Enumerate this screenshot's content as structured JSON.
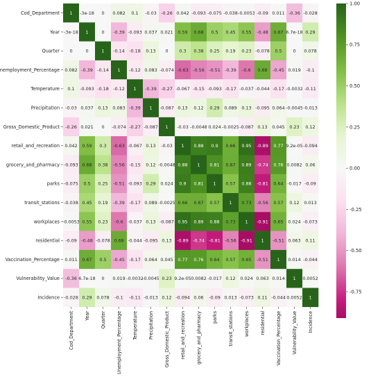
{
  "chart_data": {
    "type": "heatmap",
    "variables": [
      "Cod_Department",
      "Year",
      "Quarter",
      "Unemployment_Percentage",
      "Temperature",
      "Precipitation",
      "Gross_Domestic_Product",
      "retail_and_recreation",
      "grocery_and_pharmacy",
      "parks",
      "transit_stations",
      "workplaces",
      "residential",
      "Vaccination_Percentage",
      "Vulnerability_Value",
      "Incidence"
    ],
    "labels": [
      [
        "1",
        "-3e-18",
        "0",
        "0.082",
        "0.1",
        "-0.03",
        "-0.26",
        "0.042",
        "-0.093",
        "-0.075",
        "-0.038",
        "-0.0053",
        "-0.09",
        "0.011",
        "-0.36",
        "-0.028"
      ],
      [
        "-3e-18",
        "1",
        "0",
        "-0.39",
        "-0.093",
        "0.037",
        "0.021",
        "0.59",
        "0.68",
        "0.5",
        "0.45",
        "0.55",
        "-0.48",
        "0.67",
        "6.7e-18",
        "0.29"
      ],
      [
        "0",
        "0",
        "1",
        "-0.14",
        "-0.18",
        "0.13",
        "0",
        "0.3",
        "0.38",
        "0.25",
        "0.19",
        "0.23",
        "-0.078",
        "0.5",
        "0",
        "0.078"
      ],
      [
        "0.082",
        "-0.39",
        "-0.14",
        "1",
        "-0.12",
        "0.083",
        "-0.074",
        "-0.63",
        "-0.56",
        "-0.51",
        "-0.39",
        "-0.6",
        "0.68",
        "-0.45",
        "0.019",
        "-0.1"
      ],
      [
        "0.1",
        "-0.093",
        "-0.18",
        "-0.12",
        "1",
        "-0.39",
        "-0.27",
        "-0.067",
        "-0.15",
        "-0.093",
        "-0.17",
        "-0.037",
        "-0.044",
        "-0.17",
        "-0.0032",
        "-0.11"
      ],
      [
        "-0.03",
        "0.037",
        "0.13",
        "0.083",
        "-0.39",
        "1",
        "-0.087",
        "0.13",
        "0.12",
        "0.29",
        "0.089",
        "0.13",
        "-0.095",
        "0.064",
        "-0.0045",
        "-0.013"
      ],
      [
        "-0.26",
        "0.021",
        "0",
        "-0.074",
        "-0.27",
        "-0.087",
        "1",
        "-0.03",
        "-0.0048",
        "0.024",
        "-0.0025",
        "-0.087",
        "0.13",
        "0.045",
        "0.23",
        "0.12"
      ],
      [
        "0.042",
        "0.59",
        "0.3",
        "-0.63",
        "-0.067",
        "0.13",
        "-0.03",
        "1",
        "0.88",
        "0.9",
        "0.66",
        "0.95",
        "-0.89",
        "0.77",
        "9.2e-05",
        "-0.094"
      ],
      [
        "-0.093",
        "0.68",
        "0.38",
        "-0.56",
        "-0.15",
        "0.12",
        "-0.0048",
        "0.88",
        "1",
        "0.81",
        "0.67",
        "0.89",
        "-0.74",
        "0.76",
        "0.0082",
        "0.06"
      ],
      [
        "-0.075",
        "0.5",
        "0.25",
        "-0.51",
        "-0.093",
        "0.29",
        "0.024",
        "0.9",
        "0.81",
        "1",
        "0.57",
        "0.88",
        "-0.81",
        "0.64",
        "-0.017",
        "-0.09"
      ],
      [
        "-0.038",
        "0.45",
        "0.19",
        "-0.39",
        "-0.17",
        "0.089",
        "-0.0025",
        "0.66",
        "0.67",
        "0.57",
        "1",
        "0.73",
        "-0.56",
        "0.57",
        "0.12",
        "0.013"
      ],
      [
        "-0.0053",
        "0.55",
        "0.23",
        "-0.6",
        "-0.037",
        "0.13",
        "-0.087",
        "0.95",
        "0.89",
        "0.88",
        "0.73",
        "1",
        "-0.91",
        "0.65",
        "0.024",
        "-0.073"
      ],
      [
        "-0.09",
        "-0.48",
        "-0.078",
        "0.68",
        "-0.044",
        "-0.095",
        "0.13",
        "-0.89",
        "-0.74",
        "-0.81",
        "-0.56",
        "-0.91",
        "1",
        "-0.51",
        "0.063",
        "0.11"
      ],
      [
        "0.011",
        "0.67",
        "0.5",
        "-0.45",
        "-0.17",
        "0.064",
        "0.045",
        "0.77",
        "0.76",
        "0.64",
        "0.57",
        "0.65",
        "-0.51",
        "1",
        "0.014",
        "-0.044"
      ],
      [
        "-0.36",
        "6.7e-18",
        "0",
        "0.019",
        "-0.0032",
        "-0.0045",
        "0.23",
        "9.2e-05",
        "0.0082",
        "-0.017",
        "0.12",
        "0.024",
        "0.063",
        "0.014",
        "1",
        "0.0052"
      ],
      [
        "-0.028",
        "0.29",
        "0.078",
        "-0.1",
        "-0.11",
        "-0.013",
        "0.12",
        "-0.094",
        "0.06",
        "-0.09",
        "0.013",
        "-0.073",
        "0.11",
        "-0.044",
        "0.0052",
        "1"
      ]
    ],
    "colormap": [
      "#8e0152",
      "#c51b7d",
      "#de77ae",
      "#f1b6da",
      "#fde0ef",
      "#f7f7f7",
      "#e6f5d0",
      "#b8e186",
      "#7fbc41",
      "#4d9221",
      "#276419"
    ],
    "vmin": -1,
    "vmax": 1,
    "colorbar_ticks": [
      "1.00",
      "0.75",
      "0.50",
      "0.25",
      "0.00",
      "-0.25",
      "-0.50",
      "-0.75"
    ],
    "colorbar_range": [
      -0.91,
      1.0
    ]
  }
}
